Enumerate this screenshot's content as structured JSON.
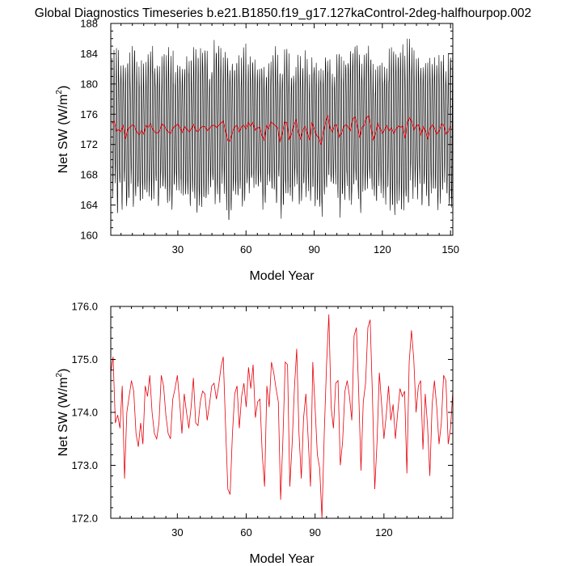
{
  "title": "Global Diagnostics Timeseries b.e21.B1850.f19_g17.127kaControl-2deg-halfhourpop.002",
  "chart_data": [
    {
      "type": "line",
      "xlabel": "Model Year",
      "ylabel_main": "Net SW (W/m",
      "ylabel_sup": "2",
      "ylabel_end": ")",
      "xlim": [
        0.5,
        151
      ],
      "ylim": [
        160,
        188
      ],
      "xticks": [
        30,
        60,
        90,
        120,
        150
      ],
      "xtick_labels": [
        "30",
        "60",
        "90",
        "120",
        "150"
      ],
      "yticks": [
        160,
        164,
        168,
        172,
        176,
        180,
        184,
        188
      ],
      "ytick_labels": [
        "160",
        "164",
        "168",
        "172",
        "176",
        "180",
        "184",
        "188"
      ],
      "series": [
        {
          "kind": "monthly",
          "color": "#000000",
          "annual_cycle_amplitude": 8.0,
          "mean": 174.0
        },
        {
          "kind": "annual",
          "color": "#e8000b",
          "values_ref": "annual_means"
        }
      ]
    },
    {
      "type": "line",
      "xlabel": "Model Year",
      "ylabel_main": "Net SW (W/m",
      "ylabel_sup": "2",
      "ylabel_end": ")",
      "xlim": [
        1,
        150
      ],
      "ylim": [
        172.0,
        176.0
      ],
      "xticks": [
        30,
        60,
        90,
        120
      ],
      "xtick_labels": [
        "30",
        "60",
        "90",
        "120"
      ],
      "yticks": [
        172.0,
        173.0,
        174.0,
        175.0,
        176.0
      ],
      "ytick_labels": [
        "172.0",
        "173.0",
        "174.0",
        "175.0",
        "176.0"
      ],
      "series": [
        {
          "kind": "annual",
          "color": "#e8000b",
          "values_ref": "annual_means"
        }
      ]
    }
  ],
  "annual_means": [
    174.75,
    175.05,
    173.8,
    173.95,
    173.7,
    174.5,
    172.75,
    174.0,
    174.3,
    174.6,
    174.4,
    173.6,
    173.35,
    173.8,
    173.4,
    174.5,
    174.3,
    174.7,
    174.0,
    173.6,
    173.5,
    173.8,
    174.7,
    174.5,
    173.95,
    173.6,
    173.5,
    174.25,
    174.45,
    174.7,
    174.2,
    173.6,
    174.35,
    174.0,
    173.7,
    174.1,
    174.65,
    173.8,
    173.75,
    174.2,
    174.4,
    174.35,
    173.85,
    174.15,
    174.5,
    174.55,
    174.25,
    174.5,
    174.85,
    175.05,
    173.75,
    172.55,
    172.45,
    173.6,
    174.35,
    174.5,
    173.7,
    174.3,
    174.55,
    174.1,
    174.85,
    174.45,
    174.9,
    173.9,
    174.2,
    174.25,
    173.2,
    172.6,
    174.5,
    174.1,
    174.95,
    174.75,
    174.45,
    174.2,
    172.35,
    173.5,
    174.95,
    174.9,
    172.6,
    173.4,
    174.45,
    175.2,
    173.6,
    172.75,
    173.9,
    174.35,
    173.5,
    172.6,
    174.95,
    174.1,
    173.2,
    172.95,
    172.0,
    173.6,
    174.9,
    175.85,
    174.1,
    173.7,
    174.55,
    174.6,
    173.0,
    173.45,
    174.4,
    174.6,
    174.3,
    173.85,
    175.45,
    175.6,
    174.4,
    172.9,
    174.2,
    174.55,
    175.6,
    175.75,
    174.3,
    172.55,
    173.45,
    174.75,
    174.15,
    173.5,
    173.95,
    174.5,
    173.85,
    174.15,
    173.5,
    174.0,
    174.45,
    174.3,
    174.4,
    172.85,
    174.95,
    175.55,
    175.0,
    174.0,
    174.5,
    174.6,
    173.3,
    174.35,
    173.75,
    172.8,
    174.15,
    174.6,
    174.1,
    173.4,
    173.8,
    174.7,
    174.6,
    173.4,
    173.7,
    174.4
  ]
}
